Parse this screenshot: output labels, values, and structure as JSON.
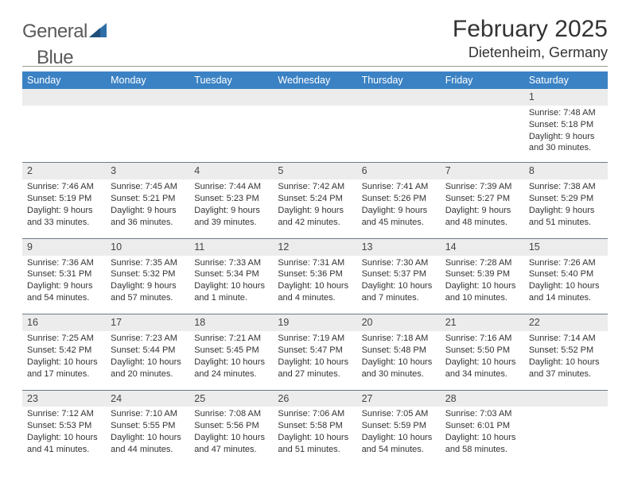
{
  "logo": {
    "text1": "General",
    "text2": "Blue"
  },
  "title": "February 2025",
  "location": "Dietenheim, Germany",
  "colors": {
    "header_bg": "#3b82c4",
    "header_text": "#ffffff",
    "daynum_bg": "#ececec",
    "sep_line": "#6b7a8a",
    "body_text": "#333333",
    "logo_gray": "#5a5a5a",
    "logo_blue": "#2f6fa8"
  },
  "fonts": {
    "title_size_pt": 22,
    "location_size_pt": 14,
    "header_size_pt": 9.5,
    "cell_size_pt": 8.2
  },
  "day_headers": [
    "Sunday",
    "Monday",
    "Tuesday",
    "Wednesday",
    "Thursday",
    "Friday",
    "Saturday"
  ],
  "weeks": [
    [
      {
        "n": "",
        "sr": "",
        "ss": "",
        "dl": ""
      },
      {
        "n": "",
        "sr": "",
        "ss": "",
        "dl": ""
      },
      {
        "n": "",
        "sr": "",
        "ss": "",
        "dl": ""
      },
      {
        "n": "",
        "sr": "",
        "ss": "",
        "dl": ""
      },
      {
        "n": "",
        "sr": "",
        "ss": "",
        "dl": ""
      },
      {
        "n": "",
        "sr": "",
        "ss": "",
        "dl": ""
      },
      {
        "n": "1",
        "sr": "Sunrise: 7:48 AM",
        "ss": "Sunset: 5:18 PM",
        "dl": "Daylight: 9 hours and 30 minutes."
      }
    ],
    [
      {
        "n": "2",
        "sr": "Sunrise: 7:46 AM",
        "ss": "Sunset: 5:19 PM",
        "dl": "Daylight: 9 hours and 33 minutes."
      },
      {
        "n": "3",
        "sr": "Sunrise: 7:45 AM",
        "ss": "Sunset: 5:21 PM",
        "dl": "Daylight: 9 hours and 36 minutes."
      },
      {
        "n": "4",
        "sr": "Sunrise: 7:44 AM",
        "ss": "Sunset: 5:23 PM",
        "dl": "Daylight: 9 hours and 39 minutes."
      },
      {
        "n": "5",
        "sr": "Sunrise: 7:42 AM",
        "ss": "Sunset: 5:24 PM",
        "dl": "Daylight: 9 hours and 42 minutes."
      },
      {
        "n": "6",
        "sr": "Sunrise: 7:41 AM",
        "ss": "Sunset: 5:26 PM",
        "dl": "Daylight: 9 hours and 45 minutes."
      },
      {
        "n": "7",
        "sr": "Sunrise: 7:39 AM",
        "ss": "Sunset: 5:27 PM",
        "dl": "Daylight: 9 hours and 48 minutes."
      },
      {
        "n": "8",
        "sr": "Sunrise: 7:38 AM",
        "ss": "Sunset: 5:29 PM",
        "dl": "Daylight: 9 hours and 51 minutes."
      }
    ],
    [
      {
        "n": "9",
        "sr": "Sunrise: 7:36 AM",
        "ss": "Sunset: 5:31 PM",
        "dl": "Daylight: 9 hours and 54 minutes."
      },
      {
        "n": "10",
        "sr": "Sunrise: 7:35 AM",
        "ss": "Sunset: 5:32 PM",
        "dl": "Daylight: 9 hours and 57 minutes."
      },
      {
        "n": "11",
        "sr": "Sunrise: 7:33 AM",
        "ss": "Sunset: 5:34 PM",
        "dl": "Daylight: 10 hours and 1 minute."
      },
      {
        "n": "12",
        "sr": "Sunrise: 7:31 AM",
        "ss": "Sunset: 5:36 PM",
        "dl": "Daylight: 10 hours and 4 minutes."
      },
      {
        "n": "13",
        "sr": "Sunrise: 7:30 AM",
        "ss": "Sunset: 5:37 PM",
        "dl": "Daylight: 10 hours and 7 minutes."
      },
      {
        "n": "14",
        "sr": "Sunrise: 7:28 AM",
        "ss": "Sunset: 5:39 PM",
        "dl": "Daylight: 10 hours and 10 minutes."
      },
      {
        "n": "15",
        "sr": "Sunrise: 7:26 AM",
        "ss": "Sunset: 5:40 PM",
        "dl": "Daylight: 10 hours and 14 minutes."
      }
    ],
    [
      {
        "n": "16",
        "sr": "Sunrise: 7:25 AM",
        "ss": "Sunset: 5:42 PM",
        "dl": "Daylight: 10 hours and 17 minutes."
      },
      {
        "n": "17",
        "sr": "Sunrise: 7:23 AM",
        "ss": "Sunset: 5:44 PM",
        "dl": "Daylight: 10 hours and 20 minutes."
      },
      {
        "n": "18",
        "sr": "Sunrise: 7:21 AM",
        "ss": "Sunset: 5:45 PM",
        "dl": "Daylight: 10 hours and 24 minutes."
      },
      {
        "n": "19",
        "sr": "Sunrise: 7:19 AM",
        "ss": "Sunset: 5:47 PM",
        "dl": "Daylight: 10 hours and 27 minutes."
      },
      {
        "n": "20",
        "sr": "Sunrise: 7:18 AM",
        "ss": "Sunset: 5:48 PM",
        "dl": "Daylight: 10 hours and 30 minutes."
      },
      {
        "n": "21",
        "sr": "Sunrise: 7:16 AM",
        "ss": "Sunset: 5:50 PM",
        "dl": "Daylight: 10 hours and 34 minutes."
      },
      {
        "n": "22",
        "sr": "Sunrise: 7:14 AM",
        "ss": "Sunset: 5:52 PM",
        "dl": "Daylight: 10 hours and 37 minutes."
      }
    ],
    [
      {
        "n": "23",
        "sr": "Sunrise: 7:12 AM",
        "ss": "Sunset: 5:53 PM",
        "dl": "Daylight: 10 hours and 41 minutes."
      },
      {
        "n": "24",
        "sr": "Sunrise: 7:10 AM",
        "ss": "Sunset: 5:55 PM",
        "dl": "Daylight: 10 hours and 44 minutes."
      },
      {
        "n": "25",
        "sr": "Sunrise: 7:08 AM",
        "ss": "Sunset: 5:56 PM",
        "dl": "Daylight: 10 hours and 47 minutes."
      },
      {
        "n": "26",
        "sr": "Sunrise: 7:06 AM",
        "ss": "Sunset: 5:58 PM",
        "dl": "Daylight: 10 hours and 51 minutes."
      },
      {
        "n": "27",
        "sr": "Sunrise: 7:05 AM",
        "ss": "Sunset: 5:59 PM",
        "dl": "Daylight: 10 hours and 54 minutes."
      },
      {
        "n": "28",
        "sr": "Sunrise: 7:03 AM",
        "ss": "Sunset: 6:01 PM",
        "dl": "Daylight: 10 hours and 58 minutes."
      },
      {
        "n": "",
        "sr": "",
        "ss": "",
        "dl": ""
      }
    ]
  ]
}
